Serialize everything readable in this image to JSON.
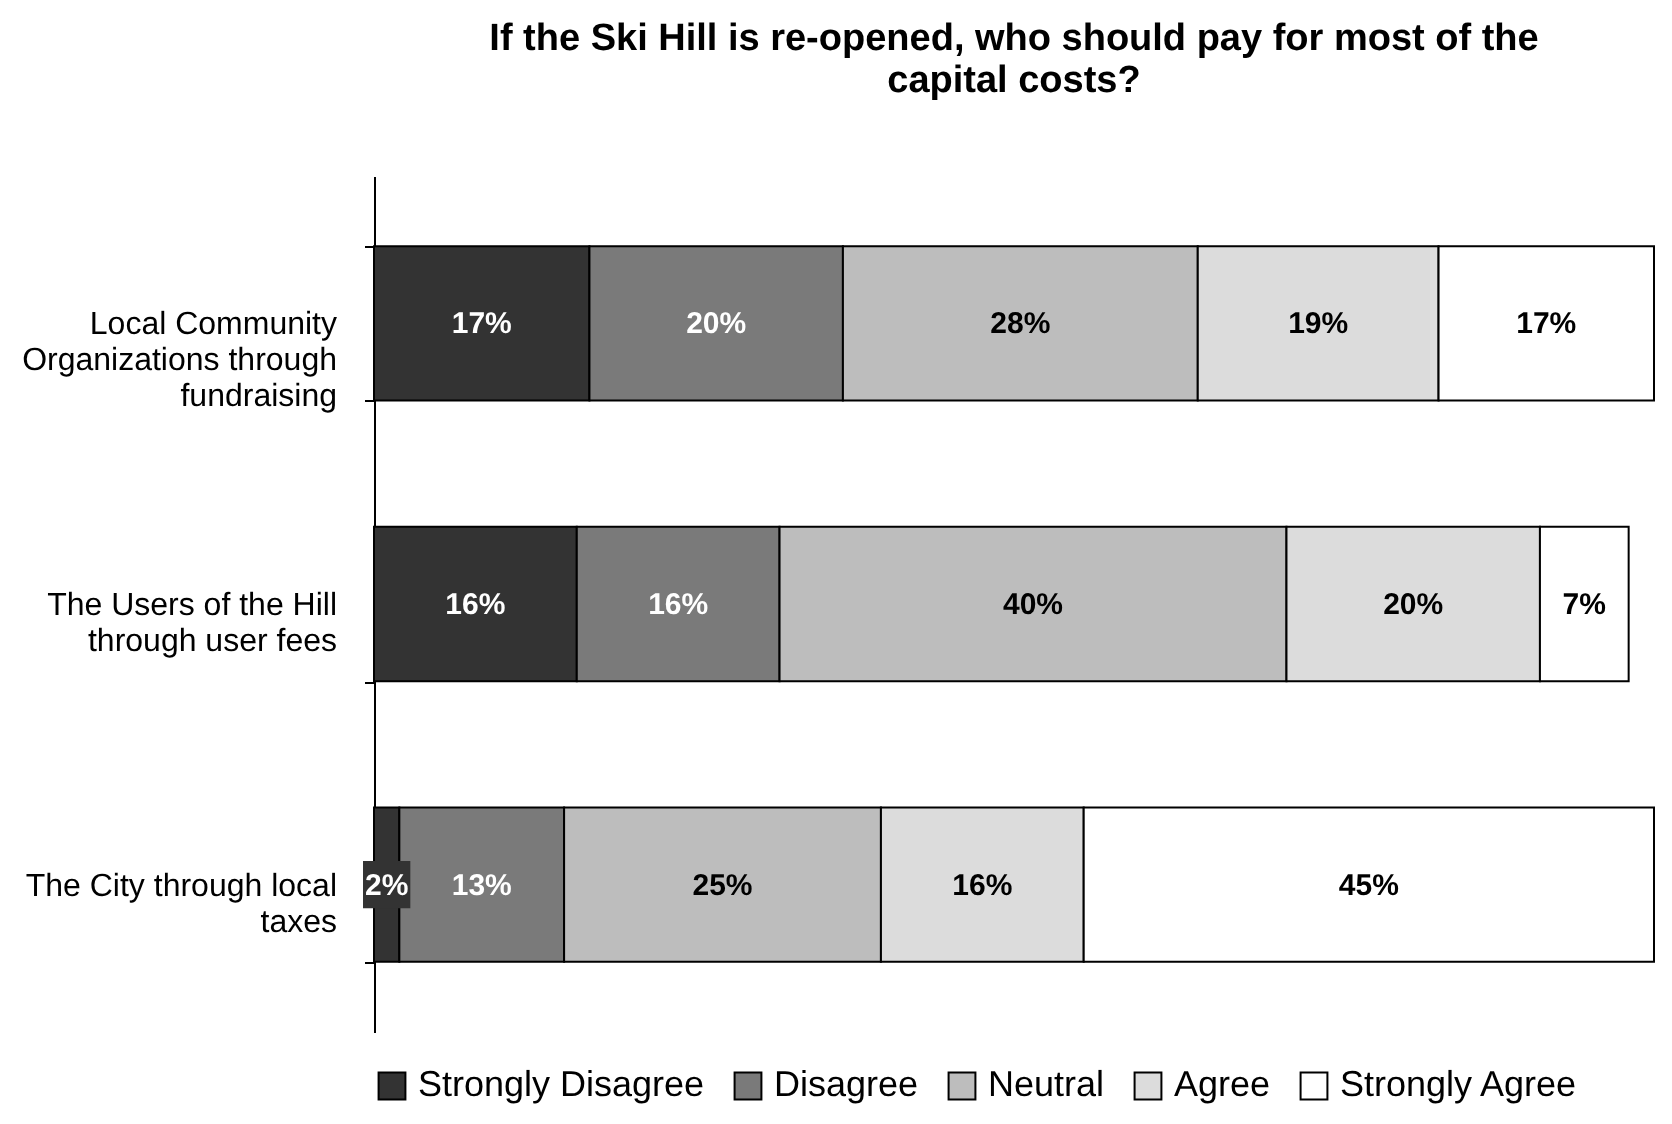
{
  "chart_data": {
    "type": "bar",
    "orientation": "horizontal",
    "stacked": true,
    "data_labels": true,
    "legend": "bottom",
    "grid": false,
    "title": "If the Ski Hill is re-opened, who should pay for most of the capital costs?",
    "categories": [
      "Local Community Organizations through fundraising",
      "The Users of the Hill through user fees",
      "The City through local taxes"
    ],
    "series": [
      {
        "name": "Strongly Disagree",
        "color": "#333333",
        "values": [
          17,
          16,
          2
        ],
        "value_labels": [
          "17%",
          "16%",
          "2%"
        ]
      },
      {
        "name": "Disagree",
        "color": "#7a7a7a",
        "values": [
          20,
          16,
          13
        ],
        "value_labels": [
          "20%",
          "16%",
          "13%"
        ]
      },
      {
        "name": "Neutral",
        "color": "#bdbdbd",
        "values": [
          28,
          40,
          25
        ],
        "value_labels": [
          "28%",
          "40%",
          "25%"
        ]
      },
      {
        "name": "Agree",
        "color": "#dcdcdc",
        "values": [
          19,
          20,
          16
        ],
        "value_labels": [
          "19%",
          "20%",
          "16%"
        ]
      },
      {
        "name": "Strongly Agree",
        "color": "#ffffff",
        "values": [
          17,
          7,
          45
        ],
        "value_labels": [
          "17%",
          "7%",
          "45%"
        ]
      }
    ]
  }
}
